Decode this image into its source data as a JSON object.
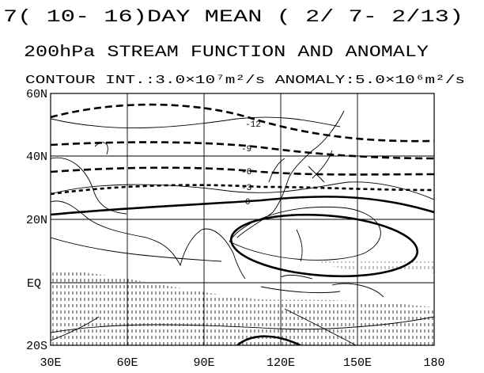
{
  "header": {
    "title": "7( 10- 16)DAY MEAN ( 2/ 7- 2/13)",
    "subtitle": "200hPa STREAM FUNCTION AND ANOMALY",
    "contour_note": "CONTOUR INT.:3.0×10⁷m²/s  ANOMALY:5.0×10⁶m²/s"
  },
  "map": {
    "x_labels": [
      "30E",
      "60E",
      "90E",
      "120E",
      "150E",
      "180"
    ],
    "y_labels": [
      "60N",
      "40N",
      "20N",
      "EQ",
      "20S"
    ],
    "contour_labels": [
      "-12",
      "-9",
      "-6",
      "-3",
      "0"
    ]
  }
}
